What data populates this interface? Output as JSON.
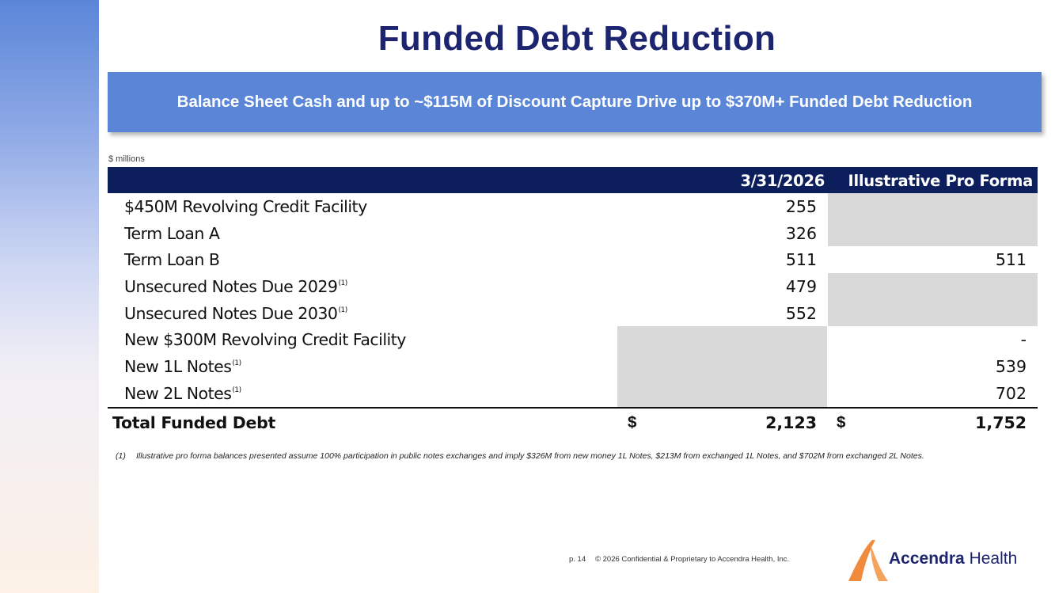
{
  "slide": {
    "title": "Funded Debt Reduction",
    "banner": "Balance Sheet Cash and up to ~$115M of Discount Capture Drive up to $370M+ Funded Debt Reduction",
    "units": "$ millions"
  },
  "table": {
    "columns": [
      "3/31/2026",
      "Illustrative Pro Forma"
    ],
    "rows": [
      {
        "label": "$450M Revolving Credit Facility",
        "sup": "",
        "v1": "255",
        "v2": ""
      },
      {
        "label": "Term Loan A",
        "sup": "",
        "v1": "326",
        "v2": ""
      },
      {
        "label": "Term Loan B",
        "sup": "",
        "v1": "511",
        "v2": "511"
      },
      {
        "label": "Unsecured Notes Due 2029",
        "sup": "(1)",
        "v1": "479",
        "v2": ""
      },
      {
        "label": "Unsecured Notes Due 2030",
        "sup": "(1)",
        "v1": "552",
        "v2": ""
      },
      {
        "label": "New $300M Revolving Credit Facility",
        "sup": "",
        "v1": "",
        "v2": "-"
      },
      {
        "label": "New 1L Notes",
        "sup": "(1)",
        "v1": "",
        "v2": "539"
      },
      {
        "label": "New 2L Notes",
        "sup": "(1)",
        "v1": "",
        "v2": "702"
      }
    ],
    "total": {
      "label": "Total Funded Debt",
      "currency": "$",
      "v1": "2,123",
      "v2": "1,752"
    }
  },
  "footnote": {
    "number": "(1)",
    "text": "Illustrative pro forma balances presented assume 100% participation in public notes exchanges and imply $326M from new money 1L Notes, $213M from exchanged 1L Notes, and $702M from exchanged 2L Notes."
  },
  "footer": {
    "page": "p. 14",
    "copyright": "© 2026 Confidential & Proprietary to Accendra Health, Inc.",
    "logo_bold": "Accendra",
    "logo_light": "Health"
  },
  "colors": {
    "title": "#1d2570",
    "banner": "#5b86d8",
    "header": "#0c1f5c",
    "shade": "#d9d9d9",
    "logo_orange": "#f08a3c"
  }
}
